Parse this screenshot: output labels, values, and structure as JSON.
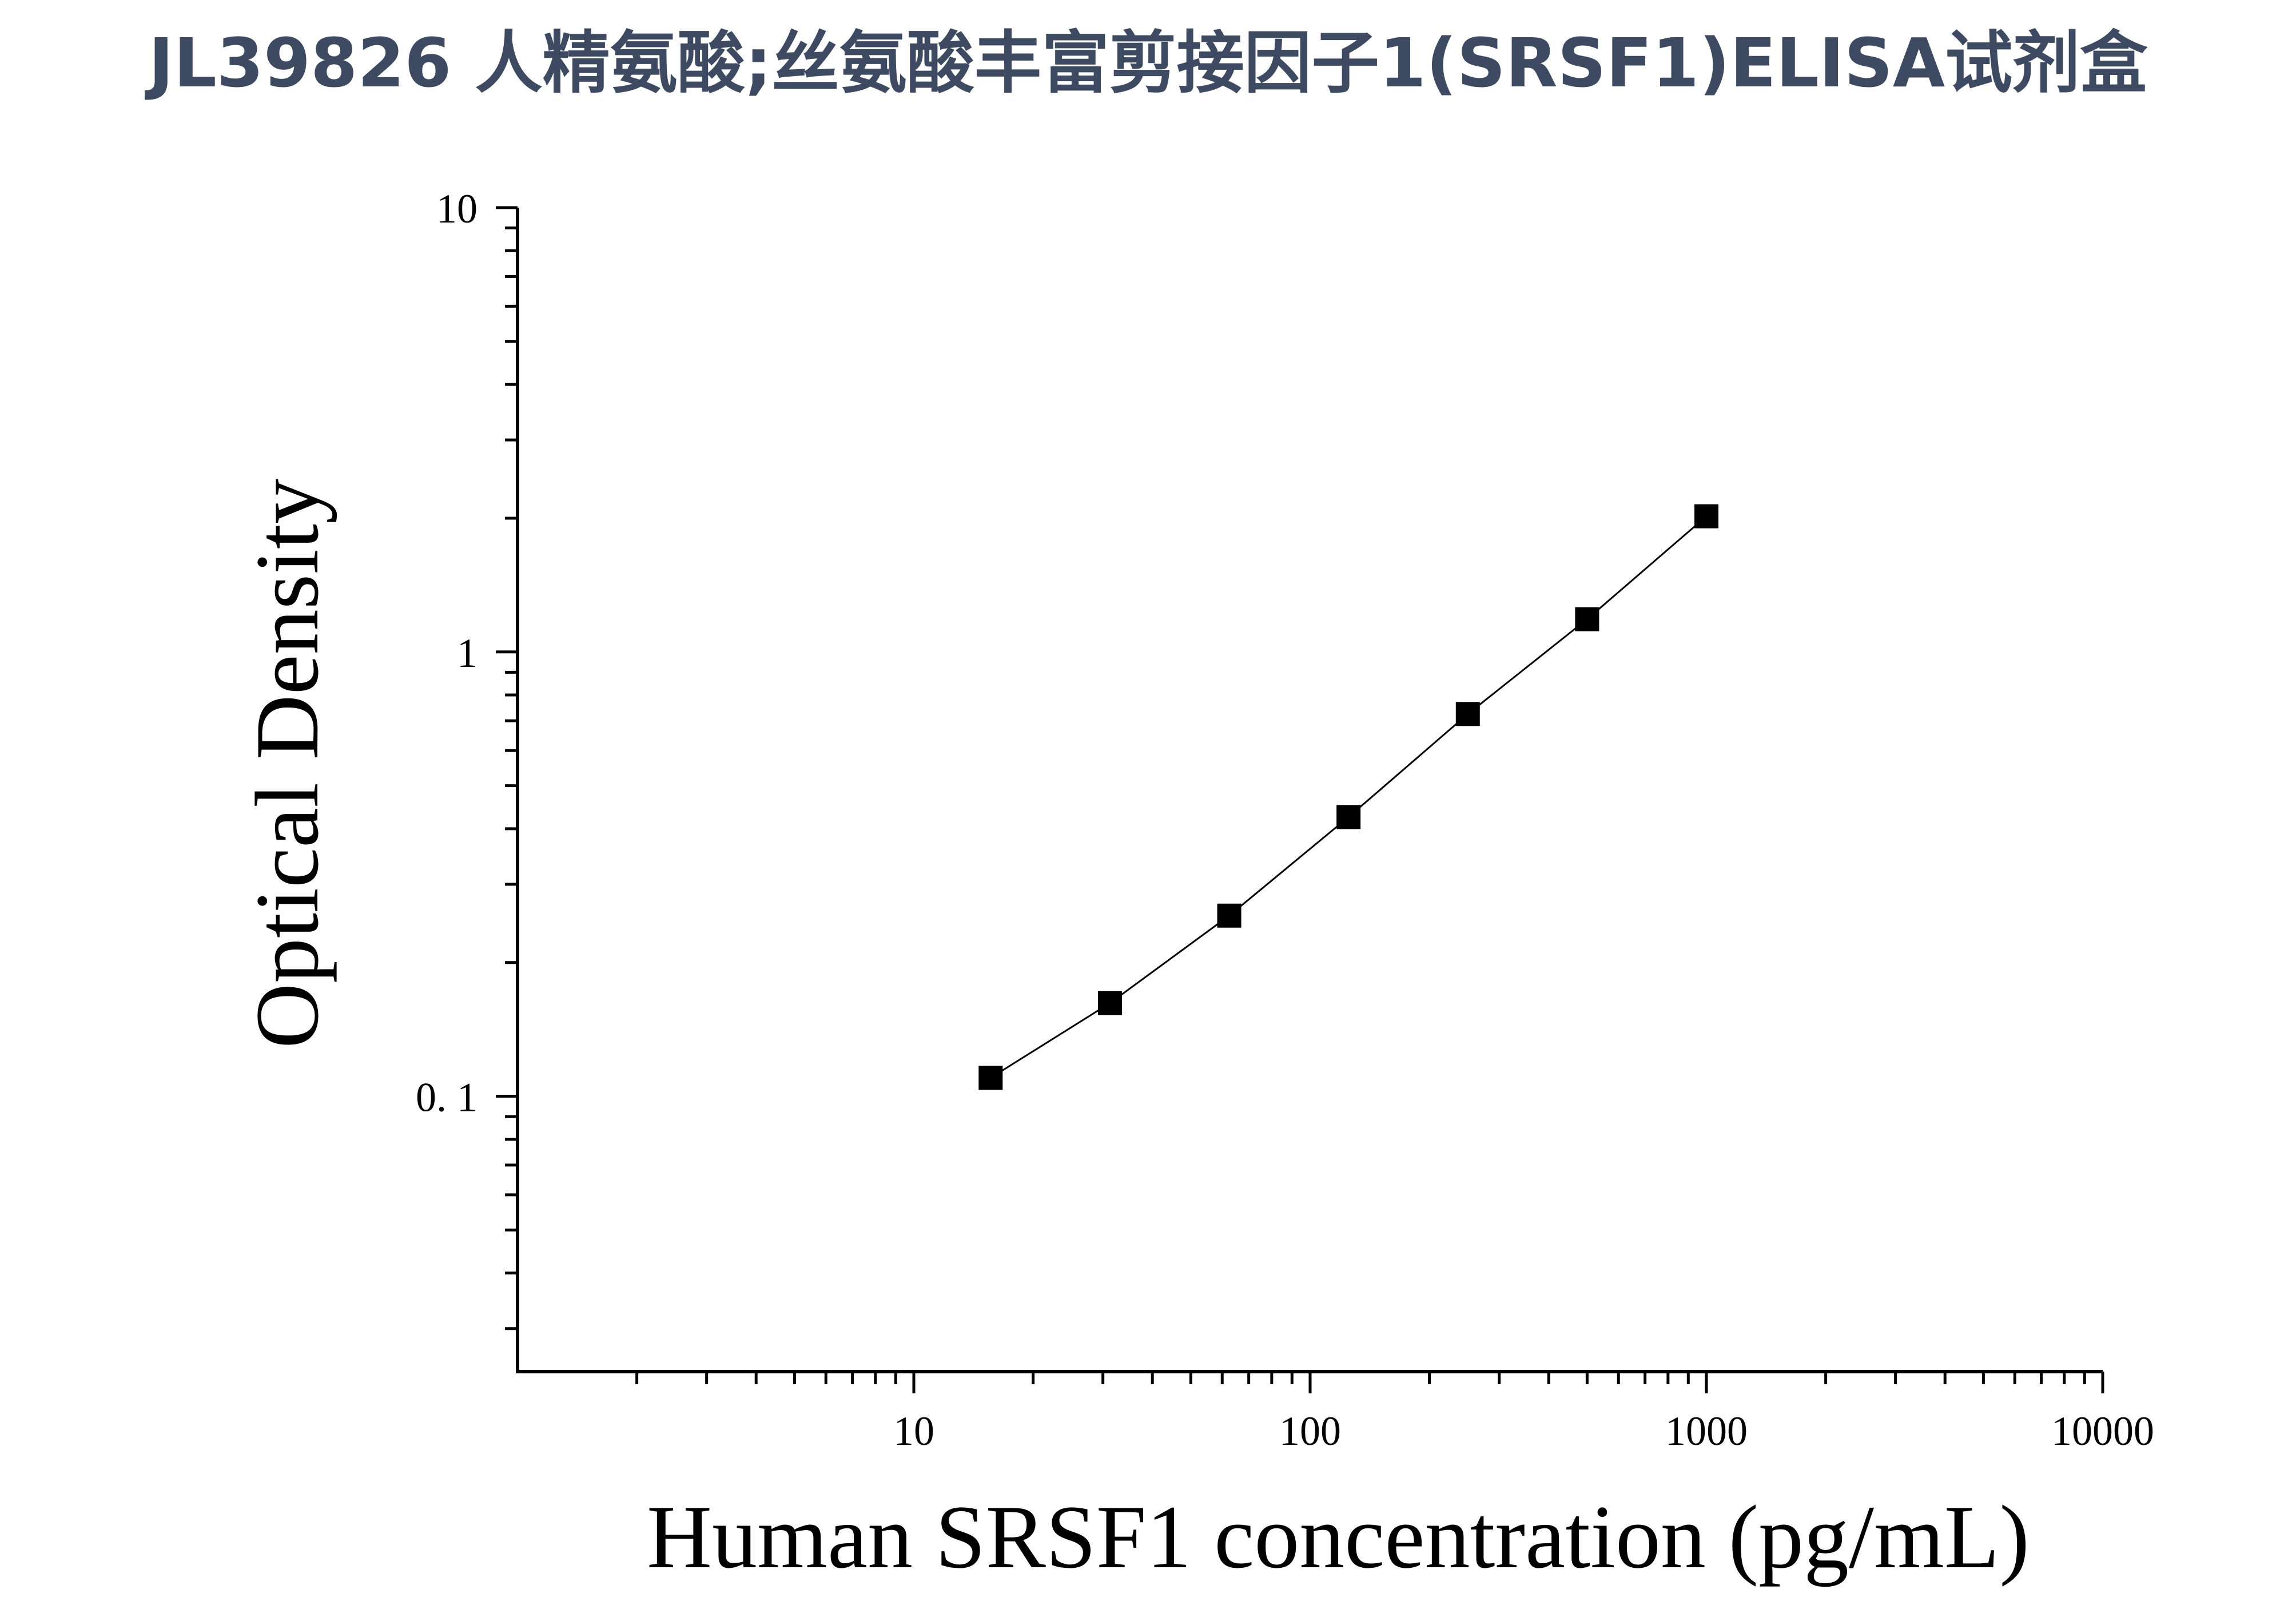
{
  "title": "JL39826 人精氨酸;丝氨酸丰富剪接因子1(SRSF1)ELISA试剂盒",
  "chart_data": {
    "type": "line",
    "xlabel": "Human SRSF1 concentration (pg/mL)",
    "ylabel": "Optical Density",
    "x_scale": "log",
    "y_scale": "log",
    "xlim": [
      1,
      10000
    ],
    "ylim": [
      0.024,
      10
    ],
    "x_ticks": [
      "10",
      "100",
      "1000",
      "10000"
    ],
    "y_ticks": [
      "0. 1",
      "1",
      "10"
    ],
    "grid": false,
    "legend": "none",
    "marker": "square",
    "color": "#000000",
    "series": [
      {
        "x": [
          15.625,
          31.25,
          62.5,
          125,
          250,
          500,
          1000
        ],
        "y": [
          0.11,
          0.162,
          0.255,
          0.425,
          0.725,
          1.185,
          2.02
        ]
      }
    ]
  }
}
